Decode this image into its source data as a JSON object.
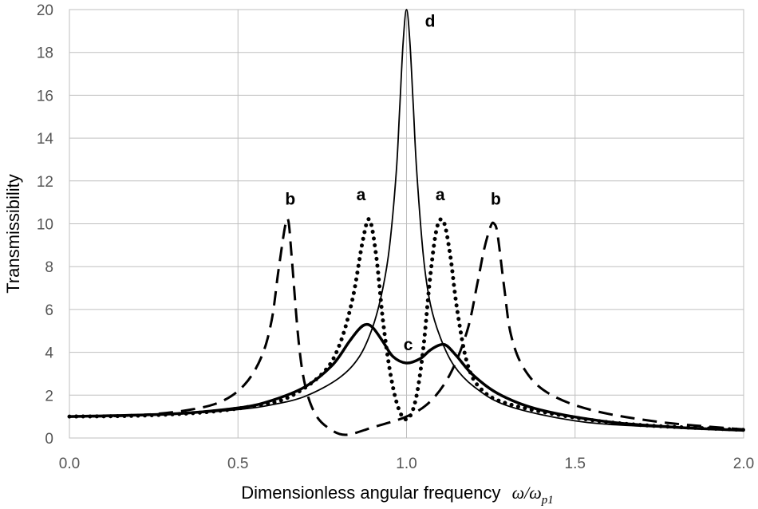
{
  "chart_data": {
    "type": "line",
    "title": "",
    "xlabel": "Dimensionless angular  frequency",
    "xlabel_math": "ω/ω",
    "xlabel_sub": "p1",
    "ylabel": "Transmissibility",
    "xlim": [
      0,
      2
    ],
    "ylim": [
      0,
      20
    ],
    "xticks": [
      "0.0",
      "0.5",
      "1.0",
      "1.5",
      "2.0"
    ],
    "yticks": [
      "0",
      "2",
      "4",
      "6",
      "8",
      "10",
      "12",
      "14",
      "16",
      "18",
      "20"
    ],
    "grid": true,
    "legend": "none",
    "series": [
      {
        "name": "a",
        "style": "dotted",
        "x": [
          0.0,
          0.2,
          0.4,
          0.55,
          0.65,
          0.75,
          0.8,
          0.84,
          0.87,
          0.89,
          0.91,
          0.93,
          0.95,
          0.97,
          0.99,
          1.01,
          1.03,
          1.05,
          1.07,
          1.09,
          1.11,
          1.13,
          1.15,
          1.18,
          1.22,
          1.3,
          1.5,
          1.7,
          2.0
        ],
        "y": [
          1.0,
          1.04,
          1.2,
          1.5,
          1.9,
          3.0,
          4.3,
          6.5,
          9.2,
          10.2,
          8.5,
          5.5,
          3.2,
          1.7,
          0.95,
          1.0,
          2.0,
          4.2,
          7.5,
          9.8,
          10.1,
          8.5,
          6.0,
          3.5,
          2.3,
          1.6,
          0.95,
          0.6,
          0.38
        ]
      },
      {
        "name": "b",
        "style": "dashed",
        "x": [
          0.0,
          0.2,
          0.35,
          0.45,
          0.52,
          0.57,
          0.6,
          0.62,
          0.64,
          0.65,
          0.66,
          0.68,
          0.7,
          0.73,
          0.77,
          0.82,
          0.9,
          1.0,
          1.07,
          1.13,
          1.18,
          1.21,
          1.23,
          1.25,
          1.26,
          1.27,
          1.29,
          1.31,
          1.35,
          1.42,
          1.55,
          1.75,
          2.0
        ],
        "y": [
          1.0,
          1.06,
          1.3,
          1.7,
          2.5,
          3.8,
          5.5,
          7.8,
          9.9,
          10.1,
          8.3,
          4.5,
          2.4,
          1.1,
          0.45,
          0.15,
          0.5,
          1.0,
          1.7,
          3.0,
          5.0,
          7.2,
          8.8,
          9.9,
          10.0,
          9.5,
          7.0,
          4.8,
          3.2,
          2.1,
          1.3,
          0.75,
          0.4
        ]
      },
      {
        "name": "c",
        "style": "thick",
        "x": [
          0.0,
          0.3,
          0.5,
          0.6,
          0.7,
          0.78,
          0.83,
          0.86,
          0.88,
          0.9,
          0.93,
          0.96,
          1.0,
          1.04,
          1.07,
          1.1,
          1.12,
          1.15,
          1.2,
          1.28,
          1.4,
          1.6,
          1.8,
          2.0
        ],
        "y": [
          1.0,
          1.12,
          1.4,
          1.75,
          2.4,
          3.4,
          4.5,
          5.1,
          5.3,
          5.15,
          4.5,
          3.8,
          3.5,
          3.7,
          4.1,
          4.35,
          4.3,
          3.8,
          2.9,
          2.0,
          1.3,
          0.75,
          0.5,
          0.36
        ]
      },
      {
        "name": "d",
        "style": "solid",
        "x": [
          0.0,
          0.3,
          0.5,
          0.6,
          0.7,
          0.8,
          0.86,
          0.9,
          0.93,
          0.95,
          0.97,
          0.98,
          0.99,
          1.0,
          1.01,
          1.02,
          1.03,
          1.05,
          1.07,
          1.1,
          1.14,
          1.2,
          1.3,
          1.5,
          1.7,
          2.0
        ],
        "y": [
          1.0,
          1.1,
          1.33,
          1.55,
          1.95,
          2.8,
          3.8,
          5.2,
          7.0,
          9.0,
          12.5,
          15.5,
          18.5,
          20.0,
          18.5,
          15.5,
          12.5,
          8.5,
          6.3,
          4.7,
          3.4,
          2.4,
          1.5,
          0.8,
          0.55,
          0.35
        ]
      }
    ],
    "annotations": [
      {
        "text": "a",
        "x": 0.865,
        "y": 11.1
      },
      {
        "text": "a",
        "x": 1.1,
        "y": 11.1
      },
      {
        "text": "b",
        "x": 0.655,
        "y": 10.9
      },
      {
        "text": "b",
        "x": 1.265,
        "y": 10.9
      },
      {
        "text": "c",
        "x": 1.005,
        "y": 4.1
      },
      {
        "text": "d",
        "x": 1.07,
        "y": 19.2
      }
    ]
  }
}
